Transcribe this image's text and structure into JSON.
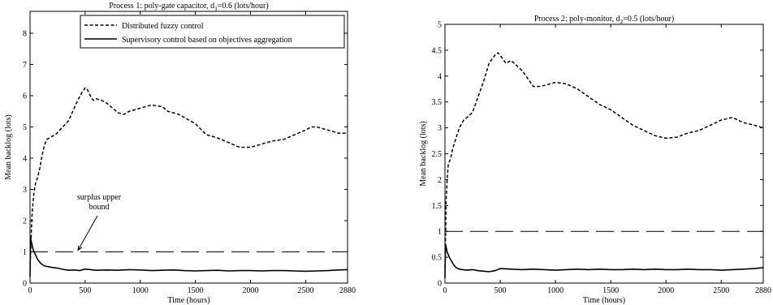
{
  "chart_data": [
    {
      "type": "line",
      "title": {
        "pre": "Process 1: poly-gate capacitor, d",
        "sub": "1",
        "post": "=0.6 (lots/hour)"
      },
      "xlabel": "Time (hours)",
      "ylabel": "Mean backlog (lots)",
      "xlim": [
        0,
        2880
      ],
      "ylim": [
        0,
        8.7
      ],
      "x_ticks": [
        0,
        500,
        1000,
        1500,
        2000,
        2500,
        2880
      ],
      "x_tick_labels": [
        "0",
        "500",
        "1000",
        "1500",
        "2000",
        "2500",
        "2880"
      ],
      "y_ticks": [
        0,
        1,
        2,
        3,
        4,
        5,
        6,
        7,
        8
      ],
      "y_tick_labels": [
        "0",
        "1",
        "2",
        "3",
        "4",
        "5",
        "6",
        "7",
        "8"
      ],
      "legend_position": "top-right",
      "series": [
        {
          "name": "Distributed fuzzy control",
          "style": "dashed",
          "x": [
            0,
            8,
            15,
            25,
            35,
            50,
            70,
            90,
            110,
            130,
            150,
            180,
            200,
            230,
            270,
            310,
            350,
            400,
            440,
            470,
            500,
            520,
            540,
            560,
            580,
            600,
            650,
            700,
            750,
            800,
            850,
            900,
            1000,
            1100,
            1200,
            1250,
            1300,
            1350,
            1400,
            1500,
            1600,
            1700,
            1800,
            1900,
            2000,
            2050,
            2100,
            2200,
            2300,
            2400,
            2500,
            2550,
            2600,
            2650,
            2700,
            2750,
            2800,
            2880
          ],
          "values": [
            0.6,
            1.2,
            2.0,
            2.5,
            2.9,
            3.2,
            3.4,
            3.7,
            4.1,
            4.4,
            4.6,
            4.65,
            4.7,
            4.75,
            4.9,
            5.05,
            5.2,
            5.6,
            5.9,
            6.1,
            6.25,
            6.2,
            6.05,
            5.9,
            5.85,
            5.9,
            5.85,
            5.75,
            5.6,
            5.45,
            5.4,
            5.5,
            5.6,
            5.7,
            5.65,
            5.5,
            5.45,
            5.4,
            5.3,
            5.1,
            4.75,
            4.65,
            4.5,
            4.35,
            4.35,
            4.4,
            4.45,
            4.55,
            4.6,
            4.75,
            4.9,
            5.0,
            5.0,
            4.95,
            4.9,
            4.85,
            4.8,
            4.8
          ]
        },
        {
          "name": "Supervisory control based on objectives aggregation",
          "style": "solid",
          "x": [
            0,
            5,
            10,
            20,
            30,
            50,
            70,
            100,
            130,
            160,
            200,
            250,
            300,
            350,
            400,
            450,
            500,
            550,
            600,
            700,
            800,
            900,
            1000,
            1100,
            1200,
            1300,
            1400,
            1500,
            1600,
            1700,
            1800,
            1900,
            2000,
            2100,
            2200,
            2300,
            2400,
            2500,
            2600,
            2700,
            2800,
            2880
          ],
          "values": [
            0.2,
            1.45,
            1.35,
            1.2,
            1.05,
            0.9,
            0.75,
            0.62,
            0.55,
            0.53,
            0.5,
            0.48,
            0.44,
            0.41,
            0.42,
            0.4,
            0.45,
            0.43,
            0.41,
            0.42,
            0.41,
            0.43,
            0.42,
            0.4,
            0.41,
            0.42,
            0.4,
            0.39,
            0.4,
            0.41,
            0.39,
            0.4,
            0.4,
            0.39,
            0.4,
            0.4,
            0.39,
            0.38,
            0.39,
            0.4,
            0.42,
            0.43
          ]
        },
        {
          "name": "",
          "style": "long-dash",
          "x": [
            0,
            2880
          ],
          "values": [
            1,
            1
          ]
        }
      ],
      "annotation": {
        "lines": [
          "surplus upper",
          "bound"
        ],
        "arrow_to": [
          450,
          1.0
        ]
      }
    },
    {
      "type": "line",
      "title": {
        "pre": "Process 2: poly-monitor, d",
        "sub": "2",
        "post": "=0.5 (lots/hour)"
      },
      "xlabel": "Time (hours)",
      "ylabel": "Mean backlog (lots)",
      "xlim": [
        0,
        2880
      ],
      "ylim": [
        0,
        5
      ],
      "x_ticks": [
        0,
        500,
        1000,
        1500,
        2000,
        2500,
        2880
      ],
      "x_tick_labels": [
        "0",
        "500",
        "1000",
        "1500",
        "2000",
        "2500",
        "2880"
      ],
      "y_ticks": [
        0,
        0.5,
        1,
        1.5,
        2,
        2.5,
        3,
        3.5,
        4,
        4.5,
        5
      ],
      "y_tick_labels": [
        "0",
        "0.5",
        "1",
        "1.5",
        "2",
        "2.5",
        "3",
        "3.5",
        "4",
        "4.5",
        "5"
      ],
      "series": [
        {
          "name": "Distributed fuzzy control",
          "style": "dashed",
          "x": [
            0,
            5,
            10,
            20,
            30,
            50,
            70,
            100,
            130,
            170,
            200,
            250,
            300,
            350,
            400,
            450,
            480,
            500,
            550,
            600,
            650,
            700,
            750,
            800,
            850,
            900,
            1000,
            1100,
            1200,
            1300,
            1400,
            1500,
            1600,
            1700,
            1800,
            1900,
            2000,
            2100,
            2200,
            2300,
            2400,
            2500,
            2600,
            2700,
            2800,
            2880
          ],
          "values": [
            0.3,
            0.9,
            1.6,
            2.0,
            2.3,
            2.4,
            2.6,
            2.8,
            3.0,
            3.15,
            3.2,
            3.3,
            3.6,
            3.9,
            4.25,
            4.4,
            4.45,
            4.4,
            4.25,
            4.3,
            4.2,
            4.1,
            3.95,
            3.8,
            3.8,
            3.82,
            3.88,
            3.85,
            3.75,
            3.6,
            3.45,
            3.35,
            3.2,
            3.05,
            2.95,
            2.85,
            2.8,
            2.82,
            2.9,
            2.95,
            3.05,
            3.15,
            3.2,
            3.1,
            3.05,
            3.0
          ]
        },
        {
          "name": "Supervisory control based on objectives aggregation",
          "style": "solid",
          "x": [
            0,
            5,
            10,
            20,
            40,
            60,
            80,
            100,
            130,
            160,
            200,
            250,
            300,
            350,
            400,
            450,
            500,
            600,
            700,
            800,
            900,
            1000,
            1100,
            1200,
            1300,
            1400,
            1500,
            1600,
            1700,
            1800,
            1900,
            2000,
            2100,
            2200,
            2300,
            2400,
            2500,
            2600,
            2700,
            2800,
            2880
          ],
          "values": [
            0.1,
            0.75,
            0.7,
            0.6,
            0.5,
            0.42,
            0.35,
            0.3,
            0.27,
            0.26,
            0.25,
            0.26,
            0.24,
            0.23,
            0.22,
            0.24,
            0.28,
            0.27,
            0.26,
            0.27,
            0.26,
            0.25,
            0.26,
            0.27,
            0.26,
            0.27,
            0.26,
            0.26,
            0.27,
            0.26,
            0.27,
            0.26,
            0.26,
            0.27,
            0.26,
            0.26,
            0.25,
            0.26,
            0.27,
            0.28,
            0.3
          ]
        },
        {
          "name": "",
          "style": "long-dash",
          "x": [
            0,
            2880
          ],
          "values": [
            1,
            1
          ]
        }
      ]
    }
  ]
}
